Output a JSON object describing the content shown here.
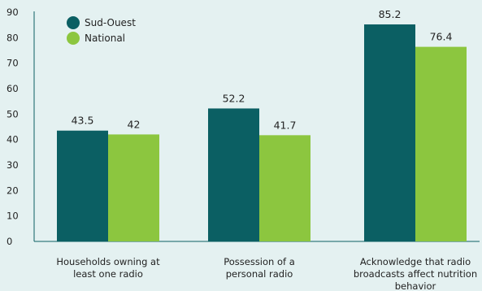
{
  "chart_data": {
    "type": "bar",
    "categories": [
      [
        "Households owning at",
        "least one radio"
      ],
      [
        "Possession of a",
        "personal radio"
      ],
      [
        "Acknowledge that radio",
        "broadcasts affect nutrition",
        "behavior"
      ]
    ],
    "series": [
      {
        "name": "Sud-Ouest",
        "values": [
          43.5,
          52.2,
          85.2
        ],
        "labels": [
          "43.5",
          "52.2",
          "85.2"
        ],
        "color": "#0b5f63"
      },
      {
        "name": "National",
        "values": [
          42,
          41.7,
          76.4
        ],
        "labels": [
          "42",
          "41.7",
          "76.4"
        ],
        "color": "#8cc63f"
      }
    ],
    "ylim": [
      0,
      90
    ],
    "yticks": [
      0,
      10,
      20,
      30,
      40,
      50,
      60,
      70,
      80,
      90
    ],
    "title": "",
    "xlabel": "",
    "ylabel": "",
    "legend_position": "top-left",
    "grid": false
  }
}
